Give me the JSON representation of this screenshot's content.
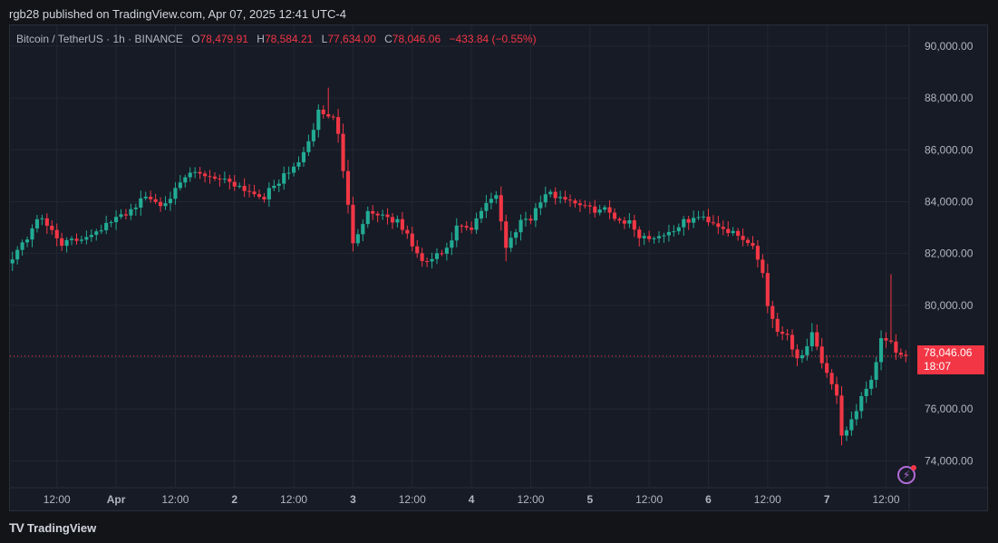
{
  "publisher": "rgb28 published on TradingView.com, Apr 07, 2025 12:41 UTC-4",
  "legend": {
    "symbol": "Bitcoin / TetherUS · 1h · BINANCE",
    "o_key": "O",
    "o": "78,479.91",
    "h_key": "H",
    "h": "78,584.21",
    "l_key": "L",
    "l": "77,634.00",
    "c_key": "C",
    "c": "78,046.06",
    "change": "−433.84 (−0.55%)"
  },
  "price_tag": {
    "price": "78,046.06",
    "countdown": "18:07"
  },
  "brand": {
    "logo_text": "TV",
    "name": "TradingView"
  },
  "colors": {
    "up": "#22ab94",
    "down": "#f23645",
    "grid": "#232733",
    "axis_text": "#b2b5be",
    "background": "#171b26"
  },
  "chart_data": {
    "type": "candlestick",
    "interval": "1h",
    "ylim": [
      73000,
      90800
    ],
    "yticks": [
      "90,000.00",
      "88,000.00",
      "86,000.00",
      "84,000.00",
      "82,000.00",
      "80,000.00",
      "78,000.00",
      "76,000.00",
      "74,000.00"
    ],
    "ytick_values": [
      90000,
      88000,
      86000,
      84000,
      82000,
      80000,
      78000,
      76000,
      74000
    ],
    "xticks": [
      {
        "label": "12:00",
        "bar": 9
      },
      {
        "label": "Apr",
        "bar": 21
      },
      {
        "label": "12:00",
        "bar": 33
      },
      {
        "label": "2",
        "bar": 45
      },
      {
        "label": "12:00",
        "bar": 57
      },
      {
        "label": "3",
        "bar": 69
      },
      {
        "label": "12:00",
        "bar": 81
      },
      {
        "label": "4",
        "bar": 93
      },
      {
        "label": "12:00",
        "bar": 105
      },
      {
        "label": "5",
        "bar": 117
      },
      {
        "label": "12:00",
        "bar": 129
      },
      {
        "label": "6",
        "bar": 141
      },
      {
        "label": "12:00",
        "bar": 153
      },
      {
        "label": "7",
        "bar": 165
      },
      {
        "label": "12:00",
        "bar": 177
      }
    ],
    "last_price": 78046.06,
    "close_waypoints": [
      [
        0,
        81900
      ],
      [
        3,
        82600
      ],
      [
        5,
        83400
      ],
      [
        8,
        82900
      ],
      [
        10,
        82400
      ],
      [
        13,
        82500
      ],
      [
        16,
        82800
      ],
      [
        20,
        83200
      ],
      [
        24,
        83700
      ],
      [
        27,
        84200
      ],
      [
        30,
        83900
      ],
      [
        33,
        84400
      ],
      [
        36,
        85100
      ],
      [
        40,
        85000
      ],
      [
        44,
        84800
      ],
      [
        48,
        84400
      ],
      [
        51,
        84200
      ],
      [
        54,
        84800
      ],
      [
        57,
        85300
      ],
      [
        60,
        86200
      ],
      [
        62,
        87500
      ],
      [
        65,
        87200
      ],
      [
        66,
        86700
      ],
      [
        67,
        85100
      ],
      [
        69,
        82500
      ],
      [
        72,
        83600
      ],
      [
        75,
        83500
      ],
      [
        78,
        83200
      ],
      [
        80,
        82700
      ],
      [
        83,
        81600
      ],
      [
        85,
        81800
      ],
      [
        88,
        82100
      ],
      [
        90,
        83000
      ],
      [
        93,
        82900
      ],
      [
        96,
        84000
      ],
      [
        98,
        84300
      ],
      [
        100,
        82200
      ],
      [
        103,
        83300
      ],
      [
        105,
        83400
      ],
      [
        108,
        84300
      ],
      [
        111,
        84200
      ],
      [
        114,
        84000
      ],
      [
        117,
        83700
      ],
      [
        120,
        83700
      ],
      [
        123,
        83300
      ],
      [
        125,
        83200
      ],
      [
        127,
        82700
      ],
      [
        129,
        82600
      ],
      [
        133,
        82800
      ],
      [
        136,
        83200
      ],
      [
        139,
        83400
      ],
      [
        141,
        83300
      ],
      [
        144,
        83000
      ],
      [
        148,
        82500
      ],
      [
        150,
        82300
      ],
      [
        152,
        81300
      ],
      [
        153,
        80000
      ],
      [
        155,
        79000
      ],
      [
        157,
        78900
      ],
      [
        159,
        77900
      ],
      [
        160,
        78100
      ],
      [
        162,
        79000
      ],
      [
        163,
        78400
      ],
      [
        165,
        77300
      ],
      [
        167,
        76400
      ],
      [
        168,
        74900
      ],
      [
        170,
        75600
      ],
      [
        172,
        76400
      ],
      [
        174,
        77000
      ],
      [
        176,
        78700
      ],
      [
        178,
        78500
      ],
      [
        180,
        78046
      ]
    ]
  }
}
